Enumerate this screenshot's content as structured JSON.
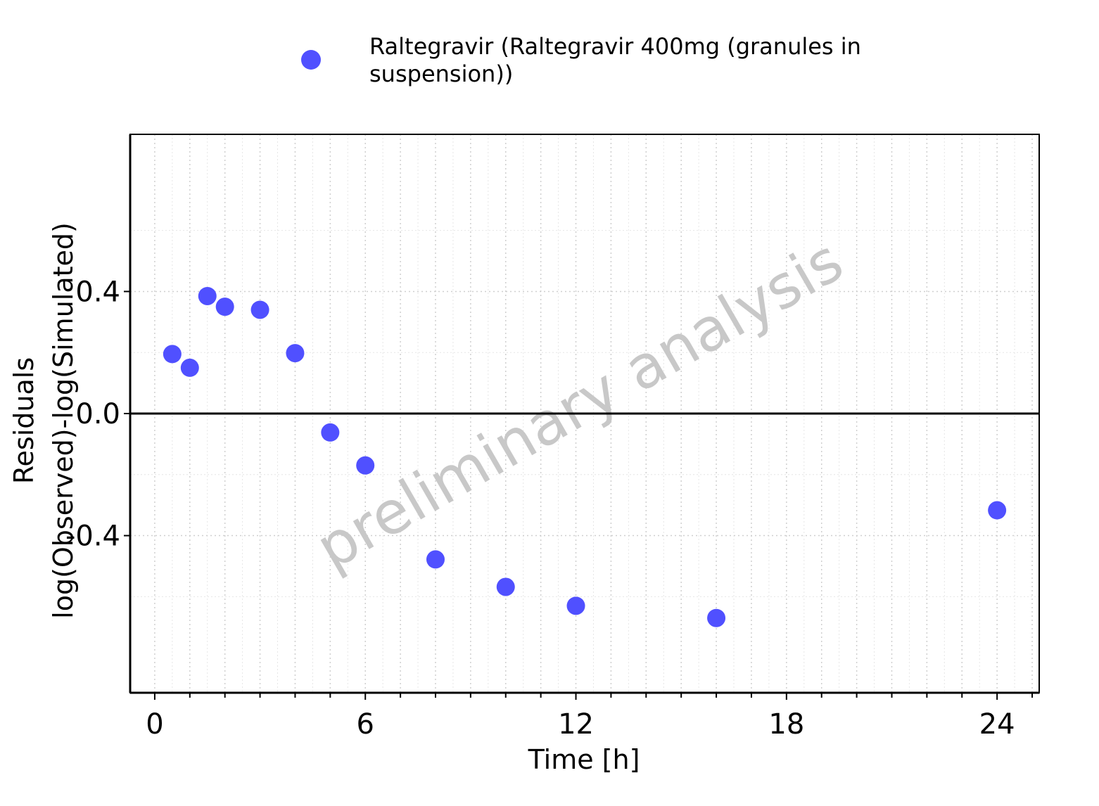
{
  "chart_data": {
    "type": "scatter",
    "title": "",
    "xlabel": "Time [h]",
    "ylabel_lines": [
      "Residuals",
      "log(Observed)-log(Simulated)"
    ],
    "xlim": [
      -0.7,
      25.2
    ],
    "ylim": [
      -0.915,
      0.915
    ],
    "x_ticks": [
      0,
      6,
      12,
      18,
      24
    ],
    "x_tick_labels": [
      "0",
      "6",
      "12",
      "18",
      "24"
    ],
    "y_ticks": [
      -0.4,
      0.0,
      0.4
    ],
    "y_tick_labels": [
      "-0.4",
      "0.0",
      "0.4"
    ],
    "grid": "dotted major and minor",
    "reference_line_y": 0,
    "legend_position": "top",
    "watermark": "preliminary analysis",
    "series": [
      {
        "name": "Raltegravir (Raltegravir 400mg (granules in suspension))",
        "legend_lines": [
          "Raltegravir (Raltegravir 400mg (granules in",
          "suspension))"
        ],
        "color": "#5050ff",
        "points": [
          {
            "x": 0.5,
            "y": 0.195
          },
          {
            "x": 1.0,
            "y": 0.15
          },
          {
            "x": 1.5,
            "y": 0.385
          },
          {
            "x": 2.0,
            "y": 0.35
          },
          {
            "x": 3.0,
            "y": 0.34
          },
          {
            "x": 4.0,
            "y": 0.198
          },
          {
            "x": 5.0,
            "y": -0.062
          },
          {
            "x": 6.0,
            "y": -0.17
          },
          {
            "x": 8.0,
            "y": -0.478
          },
          {
            "x": 10.0,
            "y": -0.568
          },
          {
            "x": 12.0,
            "y": -0.63
          },
          {
            "x": 16.0,
            "y": -0.67
          },
          {
            "x": 24.0,
            "y": -0.317
          }
        ]
      }
    ]
  }
}
